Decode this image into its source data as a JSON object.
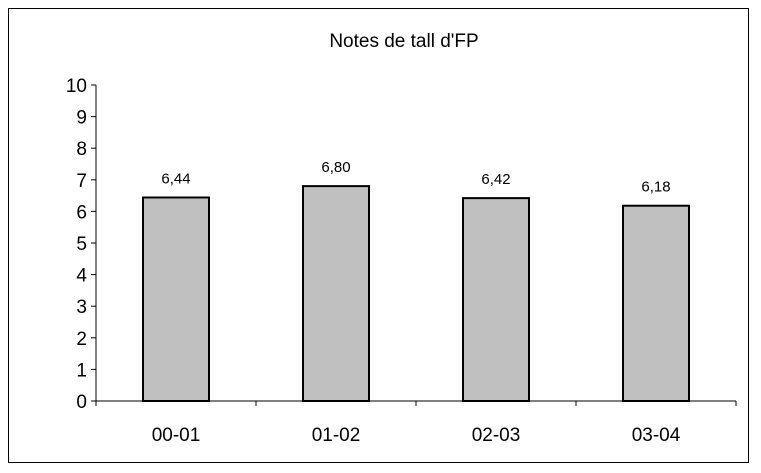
{
  "chart_data": {
    "type": "bar",
    "title": "Notes de tall d'FP",
    "categories": [
      "00-01",
      "01-02",
      "02-03",
      "03-04"
    ],
    "values": [
      6.44,
      6.8,
      6.42,
      6.18
    ],
    "data_labels": [
      "6,44",
      "6,80",
      "6,42",
      "6,18"
    ],
    "yticks": [
      "0",
      "1",
      "2",
      "3",
      "4",
      "5",
      "6",
      "7",
      "8",
      "9",
      "10"
    ],
    "ylim": [
      0,
      10
    ],
    "grid": false,
    "legend": "none",
    "bar_color": "#c0c0c0",
    "bar_border_color": "#000000"
  }
}
